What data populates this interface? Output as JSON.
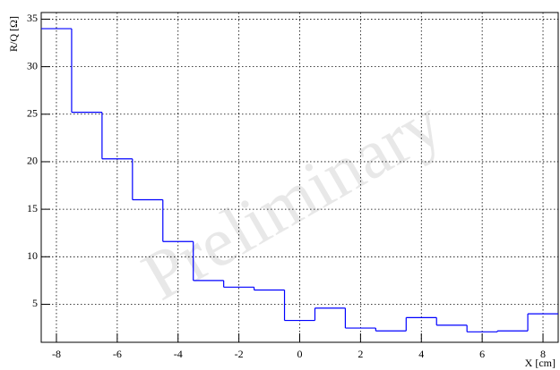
{
  "chart_data": {
    "type": "histogram",
    "ylabel": "R/Q [Ω]",
    "xlabel": "X [cm]",
    "watermark": "Preliminary",
    "bins": [
      -8.5,
      -7.5,
      -6.5,
      -5.5,
      -4.5,
      -3.5,
      -2.5,
      -1.5,
      -0.5,
      0.5,
      1.5,
      2.5,
      3.5,
      4.5,
      5.5,
      6.5,
      7.5,
      8.5
    ],
    "values": [
      34.0,
      25.2,
      20.3,
      16.0,
      11.6,
      7.5,
      6.8,
      6.5,
      3.3,
      4.6,
      2.5,
      2.2,
      3.6,
      2.8,
      2.1,
      2.2,
      4.0
    ],
    "color": "#0000ff",
    "xlim": [
      -8.5,
      8.5
    ],
    "xticks": [
      -8,
      -6,
      -4,
      -2,
      0,
      2,
      4,
      6,
      8
    ],
    "ylim": [
      1,
      35.7
    ],
    "yticks": [
      5,
      10,
      15,
      20,
      25,
      30,
      35
    ],
    "grid": true
  }
}
